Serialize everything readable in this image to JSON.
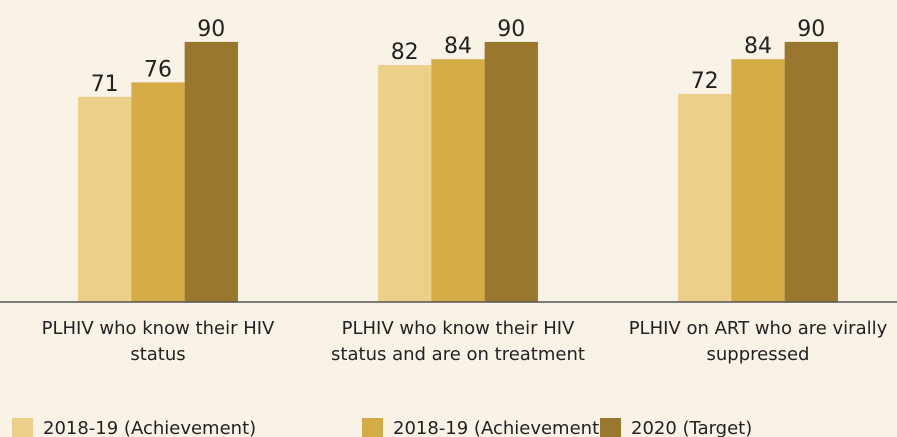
{
  "chart_data": {
    "type": "bar",
    "categories": [
      "PLHIV who know their HIV status",
      "PLHIV who know their HIV status and are on treatment",
      "PLHIV on ART who are virally suppressed"
    ],
    "series": [
      {
        "name": "2018-19 (Achievement)",
        "color": "#ecd08a",
        "values": [
          71,
          82,
          72
        ]
      },
      {
        "name": "2018-19 (Achievement)",
        "color": "#d4ab45",
        "values": [
          76,
          84,
          84
        ]
      },
      {
        "name": "2020 (Target)",
        "color": "#9a772f",
        "values": [
          90,
          90,
          90
        ]
      }
    ],
    "ylim": [
      0,
      100
    ]
  }
}
